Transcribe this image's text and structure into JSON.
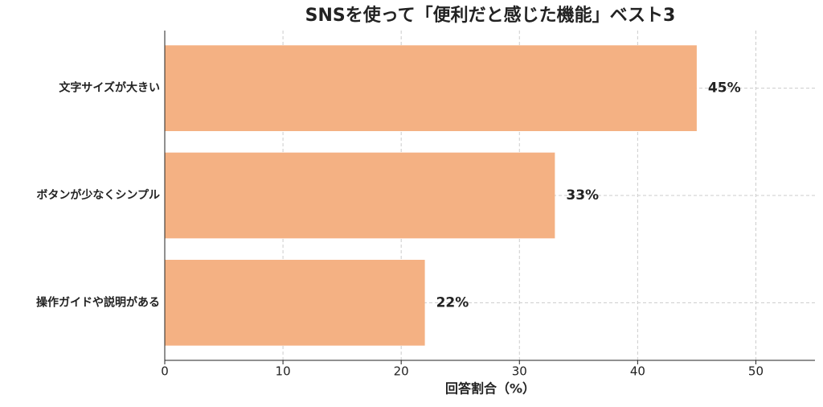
{
  "chart_data": {
    "type": "barh",
    "title": "SNSを使って「便利だと感じた機能」ベスト3",
    "categories": [
      "文字サイズが大きい",
      "ボタンが少なくシンプル",
      "操作ガイドや説明がある"
    ],
    "values": [
      45,
      33,
      22
    ],
    "value_labels": [
      "45%",
      "33%",
      "22%"
    ],
    "color": "#f4b183",
    "xlabel": "回答割合（%）",
    "xlim": [
      0,
      55
    ],
    "xticks": [
      0,
      10,
      20,
      30,
      40,
      50
    ],
    "grid": true
  }
}
